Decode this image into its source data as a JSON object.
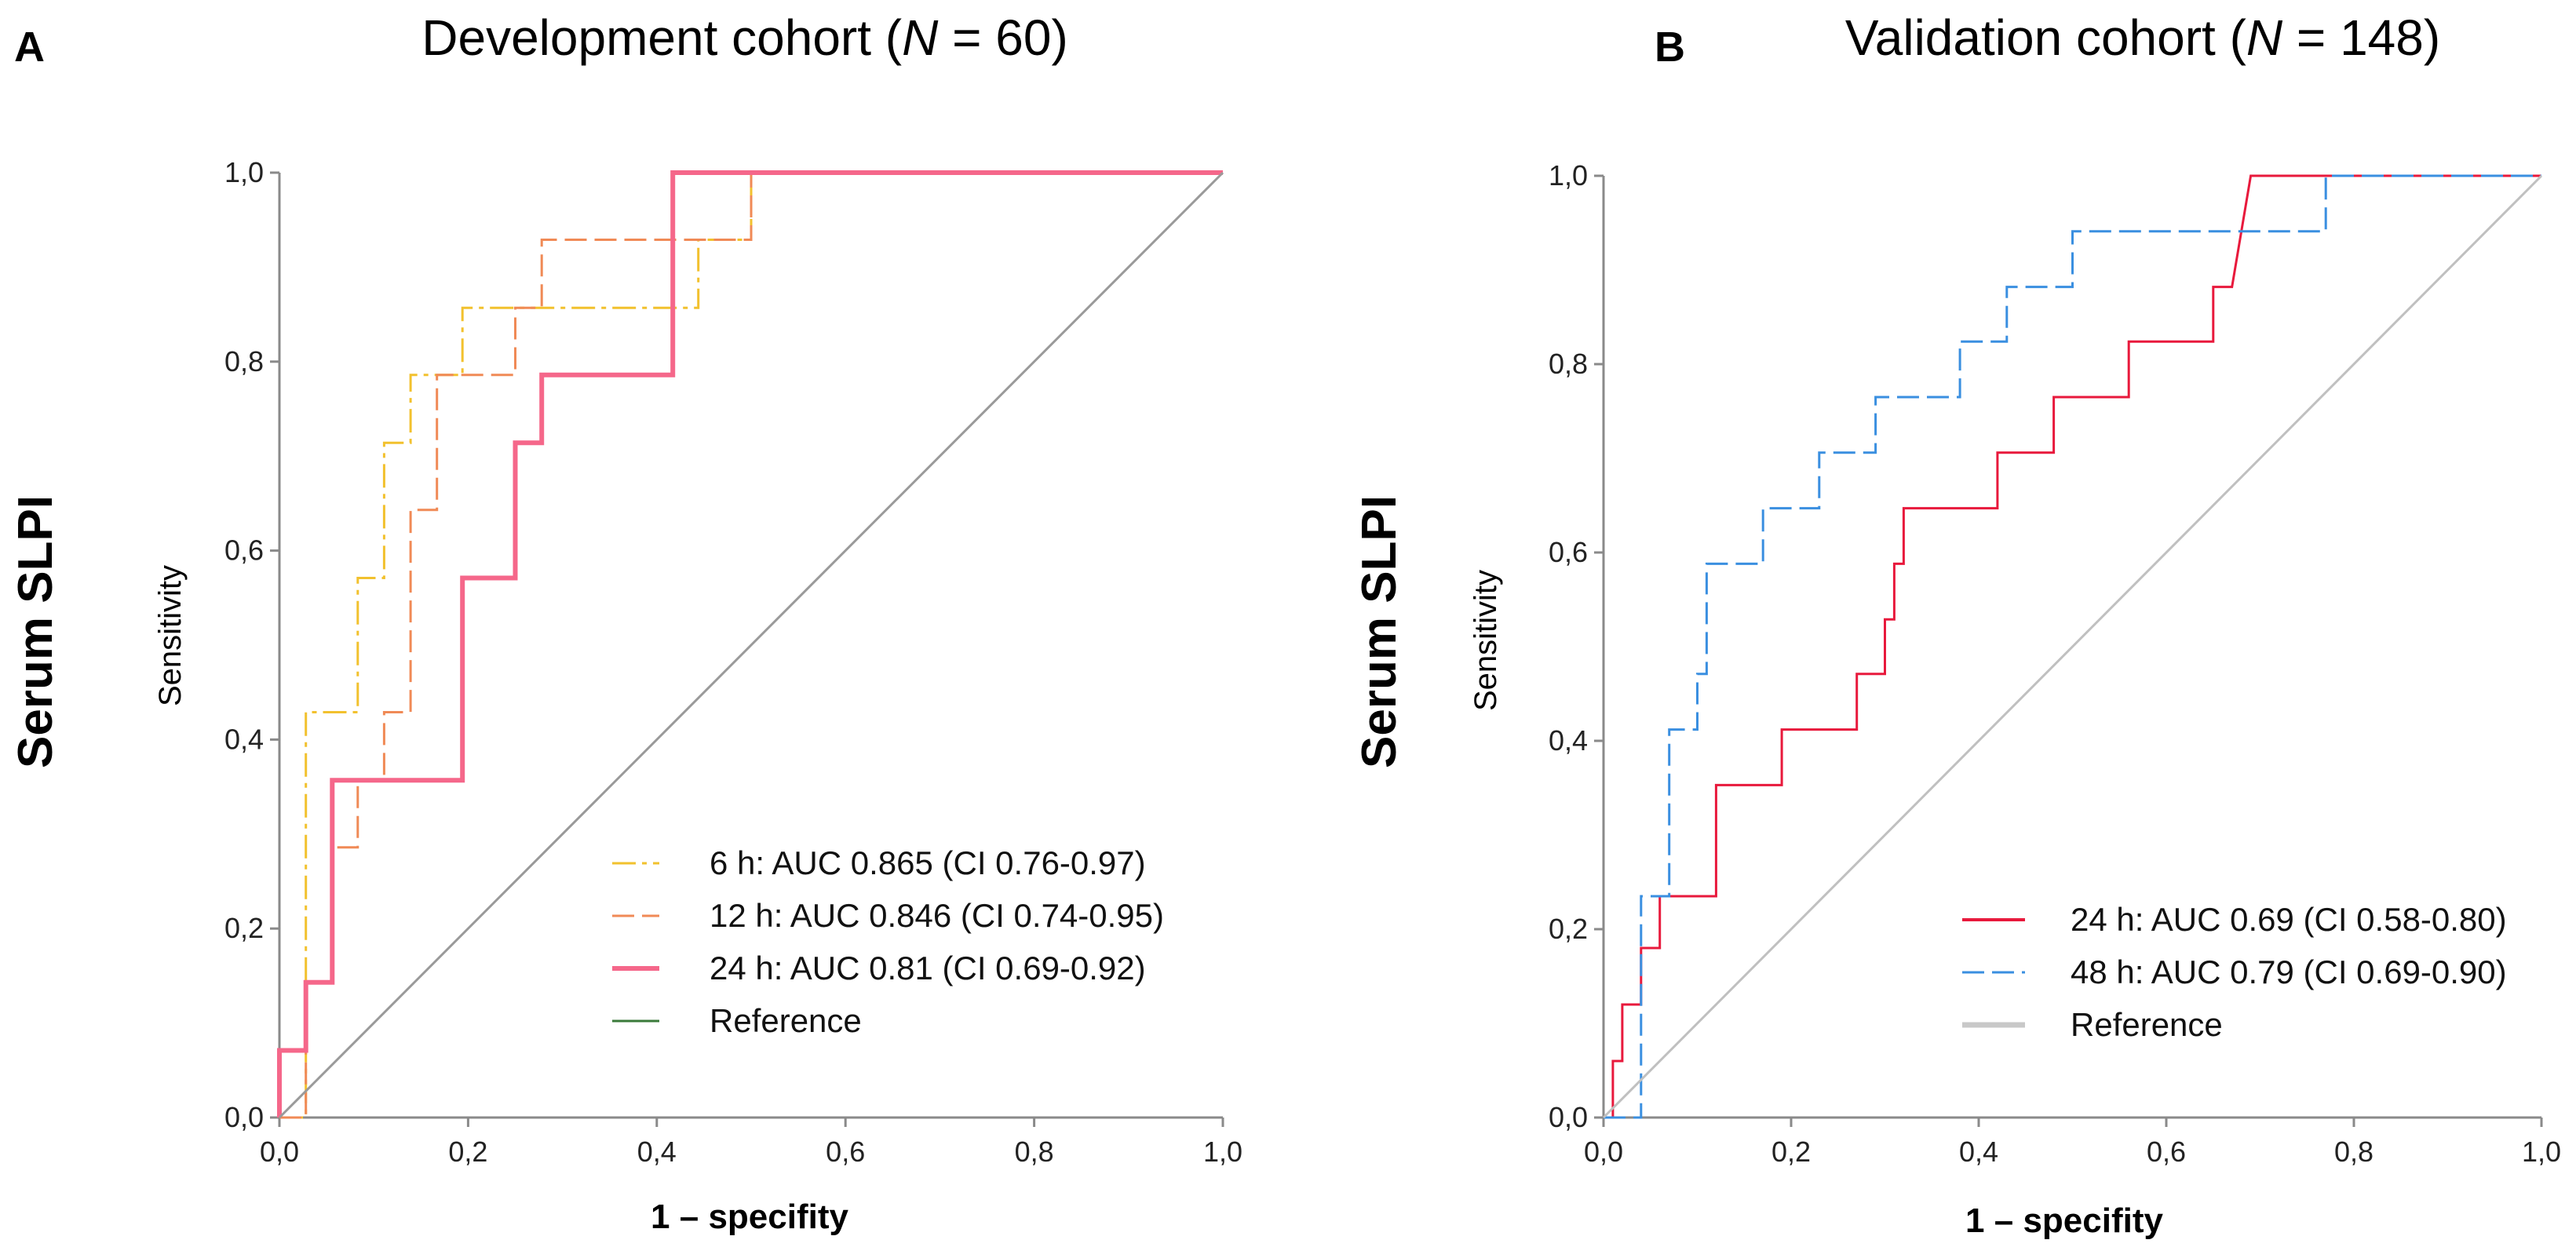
{
  "figure": {
    "panel_a_letter": "A",
    "panel_b_letter": "B",
    "row_label_a": "Serum SLPI",
    "row_label_b": "Serum SLPI"
  },
  "chart_data": [
    {
      "type": "line",
      "panel": "A",
      "title_prefix": "Development cohort (",
      "title_italic": "N",
      "title_suffix": " = 60)",
      "xlabel": "1 – specifity",
      "ylabel": "Sensitivity",
      "xlim": [
        0,
        1
      ],
      "ylim": [
        0,
        1
      ],
      "x_ticks": [
        "0,0",
        "0,2",
        "0,4",
        "0,6",
        "0,8",
        "1,0"
      ],
      "y_ticks": [
        "0,0",
        "0,2",
        "0,4",
        "0,6",
        "0,8",
        "1,0"
      ],
      "legend": [
        {
          "label": "6 h:   AUC 0.865 (CI 0.76-0.97)",
          "color": "#f2c12e",
          "dash": "30 8 6 8",
          "width": 3
        },
        {
          "label": "12 h: AUC 0.846 (CI 0.74-0.95)",
          "color": "#f08a56",
          "dash": "28 10",
          "width": 3
        },
        {
          "label": "24 h: AUC 0.81 (CI 0.69-0.92)",
          "color": "#f5678a",
          "dash": "",
          "width": 6
        },
        {
          "label": "Reference",
          "color": "#3a7a3a",
          "dash": "",
          "width": 3
        }
      ],
      "series": [
        {
          "name": "6 h",
          "color": "#f2c12e",
          "dash": "30 8 6 8",
          "width": 3,
          "points": [
            [
              0,
              0
            ],
            [
              0.028,
              0
            ],
            [
              0.028,
              0.429
            ],
            [
              0.056,
              0.429
            ],
            [
              0.083,
              0.429
            ],
            [
              0.083,
              0.571
            ],
            [
              0.111,
              0.571
            ],
            [
              0.111,
              0.714
            ],
            [
              0.139,
              0.714
            ],
            [
              0.139,
              0.786
            ],
            [
              0.167,
              0.786
            ],
            [
              0.194,
              0.786
            ],
            [
              0.194,
              0.857
            ],
            [
              0.222,
              0.857
            ],
            [
              0.25,
              0.857
            ],
            [
              0.306,
              0.857
            ],
            [
              0.444,
              0.857
            ],
            [
              0.444,
              0.929
            ],
            [
              0.5,
              0.929
            ],
            [
              0.5,
              1.0
            ],
            [
              1.0,
              1.0
            ]
          ]
        },
        {
          "name": "12 h",
          "color": "#f08a56",
          "dash": "28 10",
          "width": 3,
          "points": [
            [
              0,
              0
            ],
            [
              0.028,
              0
            ],
            [
              0.028,
              0.071
            ],
            [
              0.028,
              0.143
            ],
            [
              0.056,
              0.143
            ],
            [
              0.056,
              0.286
            ],
            [
              0.083,
              0.286
            ],
            [
              0.083,
              0.357
            ],
            [
              0.111,
              0.357
            ],
            [
              0.111,
              0.429
            ],
            [
              0.139,
              0.429
            ],
            [
              0.139,
              0.643
            ],
            [
              0.167,
              0.643
            ],
            [
              0.167,
              0.786
            ],
            [
              0.25,
              0.786
            ],
            [
              0.25,
              0.857
            ],
            [
              0.278,
              0.857
            ],
            [
              0.278,
              0.929
            ],
            [
              0.5,
              0.929
            ],
            [
              0.5,
              1.0
            ],
            [
              1.0,
              1.0
            ]
          ]
        },
        {
          "name": "24 h",
          "color": "#f5678a",
          "dash": "",
          "width": 6,
          "points": [
            [
              0,
              0
            ],
            [
              0,
              0.071
            ],
            [
              0.028,
              0.071
            ],
            [
              0.028,
              0.143
            ],
            [
              0.056,
              0.143
            ],
            [
              0.056,
              0.357
            ],
            [
              0.194,
              0.357
            ],
            [
              0.194,
              0.571
            ],
            [
              0.25,
              0.571
            ],
            [
              0.25,
              0.714
            ],
            [
              0.278,
              0.714
            ],
            [
              0.278,
              0.786
            ],
            [
              0.417,
              0.786
            ],
            [
              0.417,
              1.0
            ],
            [
              1.0,
              1.0
            ]
          ]
        },
        {
          "name": "Reference",
          "color": "#9a9a9a",
          "dash": "",
          "width": 3,
          "points": [
            [
              0,
              0
            ],
            [
              1,
              1
            ]
          ]
        }
      ]
    },
    {
      "type": "line",
      "panel": "B",
      "title_prefix": "Validation cohort (",
      "title_italic": "N",
      "title_suffix": " = 148)",
      "xlabel": "1 – specifity",
      "ylabel": "Sensitivity",
      "xlim": [
        0,
        1
      ],
      "ylim": [
        0,
        1
      ],
      "x_ticks": [
        "0,0",
        "0,2",
        "0,4",
        "0,6",
        "0,8",
        "1,0"
      ],
      "y_ticks": [
        "0,0",
        "0,2",
        "0,4",
        "0,6",
        "0,8",
        "1,0"
      ],
      "legend": [
        {
          "label": "24 h: AUC 0.69 (CI 0.58-0.80)",
          "color": "#e8193c",
          "dash": "",
          "width": 4
        },
        {
          "label": "48 h: AUC 0.79 (CI 0.69-0.90)",
          "color": "#3a8fe0",
          "dash": "28 10",
          "width": 3
        },
        {
          "label": "Reference",
          "color": "#c8c8c8",
          "dash": "",
          "width": 7
        }
      ],
      "series": [
        {
          "name": "24 h",
          "color": "#e8193c",
          "dash": "",
          "width": 3,
          "points": [
            [
              0,
              0
            ],
            [
              0.01,
              0
            ],
            [
              0.01,
              0.06
            ],
            [
              0.02,
              0.06
            ],
            [
              0.02,
              0.12
            ],
            [
              0.04,
              0.12
            ],
            [
              0.04,
              0.18
            ],
            [
              0.06,
              0.18
            ],
            [
              0.06,
              0.235
            ],
            [
              0.12,
              0.235
            ],
            [
              0.12,
              0.353
            ],
            [
              0.19,
              0.353
            ],
            [
              0.19,
              0.412
            ],
            [
              0.27,
              0.412
            ],
            [
              0.27,
              0.471
            ],
            [
              0.3,
              0.471
            ],
            [
              0.3,
              0.529
            ],
            [
              0.31,
              0.529
            ],
            [
              0.31,
              0.588
            ],
            [
              0.32,
              0.588
            ],
            [
              0.32,
              0.647
            ],
            [
              0.42,
              0.647
            ],
            [
              0.42,
              0.706
            ],
            [
              0.48,
              0.706
            ],
            [
              0.48,
              0.765
            ],
            [
              0.56,
              0.765
            ],
            [
              0.56,
              0.824
            ],
            [
              0.65,
              0.824
            ],
            [
              0.65,
              0.882
            ],
            [
              0.67,
              0.882
            ],
            [
              0.69,
              1.0
            ],
            [
              1.0,
              1.0
            ]
          ]
        },
        {
          "name": "48 h",
          "color": "#3a8fe0",
          "dash": "28 10",
          "width": 3,
          "points": [
            [
              0,
              0
            ],
            [
              0.04,
              0
            ],
            [
              0.04,
              0.235
            ],
            [
              0.07,
              0.235
            ],
            [
              0.07,
              0.412
            ],
            [
              0.1,
              0.412
            ],
            [
              0.1,
              0.471
            ],
            [
              0.11,
              0.471
            ],
            [
              0.11,
              0.588
            ],
            [
              0.17,
              0.588
            ],
            [
              0.17,
              0.647
            ],
            [
              0.23,
              0.647
            ],
            [
              0.23,
              0.706
            ],
            [
              0.29,
              0.706
            ],
            [
              0.29,
              0.765
            ],
            [
              0.38,
              0.765
            ],
            [
              0.38,
              0.824
            ],
            [
              0.43,
              0.824
            ],
            [
              0.43,
              0.882
            ],
            [
              0.5,
              0.882
            ],
            [
              0.5,
              0.941
            ],
            [
              0.77,
              0.941
            ],
            [
              0.77,
              1.0
            ],
            [
              1.0,
              1.0
            ]
          ]
        },
        {
          "name": "Reference",
          "color": "#c0c0c0",
          "dash": "",
          "width": 3,
          "points": [
            [
              0,
              0
            ],
            [
              1,
              1
            ]
          ]
        }
      ]
    }
  ]
}
